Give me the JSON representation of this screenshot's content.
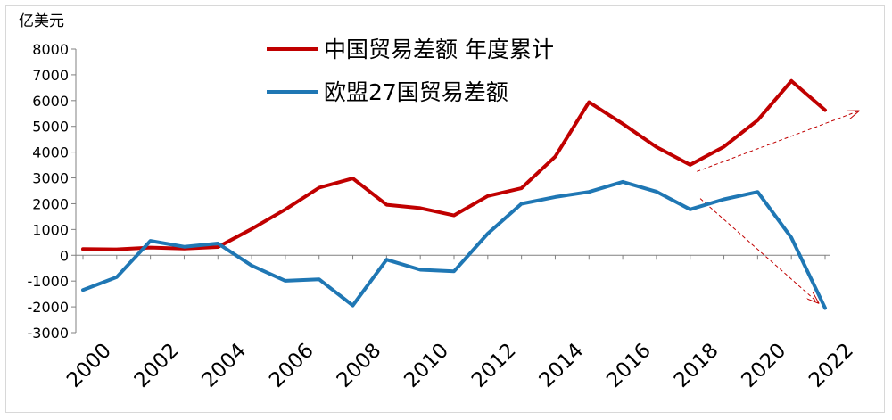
{
  "chart_data": {
    "type": "line",
    "unit_label": "亿美元",
    "x": [
      2000,
      2001,
      2002,
      2003,
      2004,
      2005,
      2006,
      2007,
      2008,
      2009,
      2010,
      2011,
      2012,
      2013,
      2014,
      2015,
      2016,
      2017,
      2018,
      2019,
      2020,
      2021,
      2022
    ],
    "x_tick_labels": [
      "2000",
      "2002",
      "2004",
      "2006",
      "2008",
      "2010",
      "2012",
      "2014",
      "2016",
      "2018",
      "2020",
      "2022"
    ],
    "ylim": [
      -3000,
      8000
    ],
    "y_ticks": [
      8000,
      7000,
      6000,
      5000,
      4000,
      3000,
      2000,
      1000,
      0,
      -1000,
      -2000,
      -3000
    ],
    "y_tick_labels": [
      "8000",
      "7000",
      "6000",
      "5000",
      "4000",
      "3000",
      "2000",
      "1000",
      "0",
      "-1000",
      "-2000",
      "-3000"
    ],
    "grid": false,
    "legend_position": "top-center",
    "series": [
      {
        "name": "中国贸易差额 年度累计",
        "color": "#c00000",
        "values": [
          240,
          230,
          300,
          260,
          320,
          1020,
          1780,
          2620,
          2980,
          1960,
          1830,
          1550,
          2300,
          2600,
          3830,
          5940,
          5100,
          4200,
          3510,
          4210,
          5240,
          6760,
          5630
        ]
      },
      {
        "name": "欧盟27国贸易差额",
        "color": "#1f77b4",
        "values": [
          -1350,
          -850,
          560,
          330,
          460,
          -400,
          -990,
          -930,
          -1950,
          -170,
          -560,
          -620,
          840,
          2000,
          2260,
          2460,
          2850,
          2470,
          1780,
          2170,
          2460,
          680,
          -2050
        ]
      }
    ],
    "annotations": [
      {
        "type": "dashed-arrow",
        "color": "#c00000",
        "from": [
          2018.2,
          3250
        ],
        "to": [
          2023.0,
          5600
        ]
      },
      {
        "type": "dashed-arrow",
        "color": "#c00000",
        "from": [
          2018.3,
          2200
        ],
        "to": [
          2021.8,
          -1850
        ]
      }
    ]
  }
}
